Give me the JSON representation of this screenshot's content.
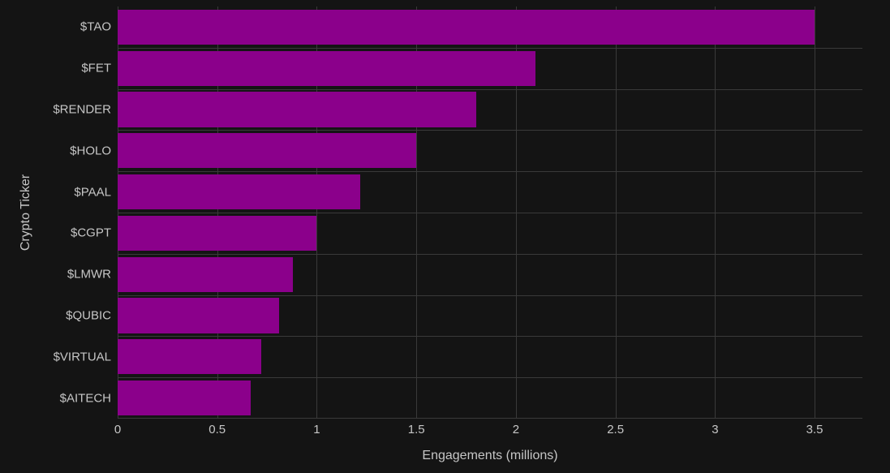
{
  "chart_data": {
    "type": "bar",
    "orientation": "horizontal",
    "title": "",
    "xlabel": "Engagements (millions)",
    "ylabel": "Crypto Ticker",
    "categories": [
      "$TAO",
      "$FET",
      "$RENDER",
      "$HOLO",
      "$PAAL",
      "$CGPT",
      "$LMWR",
      "$QUBIC",
      "$VIRTUAL",
      "$AITECH"
    ],
    "values": [
      3.5,
      2.1,
      1.8,
      1.5,
      1.22,
      1.0,
      0.88,
      0.81,
      0.72,
      0.67
    ],
    "xtick_values": [
      0,
      0.5,
      1,
      1.5,
      2,
      2.5,
      3,
      3.5
    ],
    "xtick_labels": [
      "0",
      "0.5",
      "1",
      "1.5",
      "2",
      "2.5",
      "3",
      "3.5"
    ],
    "xlim": [
      0,
      3.74
    ],
    "grid": true,
    "legend": false,
    "bar_color": "#8B008B",
    "background_color": "#141414",
    "grid_color": "#3a3a3a",
    "text_color": "#c6c6c6"
  }
}
